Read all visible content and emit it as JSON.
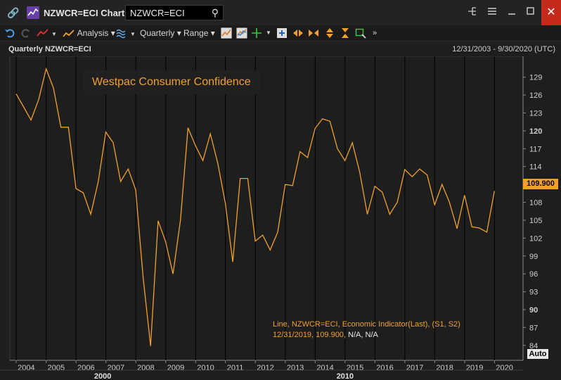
{
  "window": {
    "title": "NZWCR=ECI Chart",
    "search_value": "NZWCR=ECI"
  },
  "toolbar": {
    "analysis_label": "Analysis",
    "interval_label": "Quarterly",
    "range_label": "Range"
  },
  "chart_header": {
    "left": "Quarterly NZWCR=ECI",
    "right": "12/31/2003 - 9/30/2020 (UTC)"
  },
  "annotation": "Westpac Consumer Confidence",
  "legend": {
    "line1": "Line, NZWCR=ECI, Economic Indicator(Last), (S1, S2)",
    "line2_orange": "12/31/2019, 109.900,",
    "line2_white": "N/A, N/A"
  },
  "last_value_label": "109.900",
  "auto_label": "Auto",
  "colors": {
    "line": "#f0a030",
    "background": "#1e1e1e",
    "grid": "#333333"
  },
  "chart_data": {
    "type": "line",
    "series": [
      {
        "x": [
          "2003-12-31",
          "2004-03-31",
          "2004-06-30",
          "2004-09-30",
          "2004-12-31",
          "2005-03-31",
          "2005-06-30",
          "2005-09-30",
          "2005-12-31",
          "2006-03-31",
          "2006-06-30",
          "2006-09-30",
          "2006-12-31",
          "2007-03-31",
          "2007-06-30",
          "2007-09-30",
          "2007-12-31",
          "2008-03-31",
          "2008-06-30",
          "2008-09-30",
          "2008-12-31",
          "2009-03-31",
          "2009-06-30",
          "2009-09-30",
          "2009-12-31",
          "2010-03-31",
          "2010-06-30",
          "2010-09-30",
          "2010-12-31",
          "2011-03-31",
          "2011-06-30",
          "2011-09-30",
          "2011-12-31",
          "2012-03-31",
          "2012-06-30",
          "2012-09-30",
          "2012-12-31",
          "2013-03-31",
          "2013-06-30",
          "2013-09-30",
          "2013-12-31",
          "2014-03-31",
          "2014-06-30",
          "2014-09-30",
          "2014-12-31",
          "2015-03-31",
          "2015-06-30",
          "2015-09-30",
          "2015-12-31",
          "2016-03-31",
          "2016-06-30",
          "2016-09-30",
          "2016-12-31",
          "2017-03-31",
          "2017-06-30",
          "2017-09-30",
          "2017-12-31",
          "2018-03-31",
          "2018-06-30",
          "2018-09-30",
          "2018-12-31",
          "2019-03-31",
          "2019-06-30",
          "2019-09-30",
          "2019-12-31"
        ],
        "values": [
          126.2,
          124.0,
          121.8,
          125.2,
          130.4,
          127.2,
          120.6,
          120.6,
          110.3,
          109.6,
          106.0,
          111.5,
          119.8,
          118.0,
          111.5,
          113.6,
          110.1,
          95.4,
          83.9,
          104.9,
          101.4,
          96.0,
          105.0,
          120.5,
          117.5,
          115.0,
          119.5,
          114.5,
          107.8,
          98.0,
          112.0,
          112.0,
          101.5,
          102.5,
          100.0,
          103.0,
          111.0,
          110.8,
          116.5,
          115.5,
          120.4,
          122.0,
          121.6,
          117.0,
          115.0,
          118.0,
          113.0,
          106.0,
          110.7,
          109.7,
          106.0,
          108.0,
          113.5,
          112.3,
          113.6,
          112.6,
          107.6,
          111.0,
          108.0,
          103.6,
          109.2,
          103.9,
          103.7,
          103.0,
          109.9
        ]
      }
    ],
    "x_ticks": [
      "2004",
      "2005",
      "2006",
      "2007",
      "2008",
      "2009",
      "2010",
      "2011",
      "2012",
      "2013",
      "2014",
      "2015",
      "2016",
      "2017",
      "2018",
      "2019",
      "2020"
    ],
    "decade_labels": [
      "2000",
      "2010"
    ],
    "y_ticks": [
      84,
      87,
      90,
      93,
      96,
      99,
      102,
      105,
      108,
      111,
      114,
      117,
      120,
      123,
      126,
      129
    ],
    "y_bold_ticks": [
      90,
      120
    ],
    "ylim": [
      81.5,
      132.5
    ],
    "xlim": [
      "2003-10-15",
      "2020-12-15"
    ],
    "grid": false,
    "axis_side": "right"
  }
}
